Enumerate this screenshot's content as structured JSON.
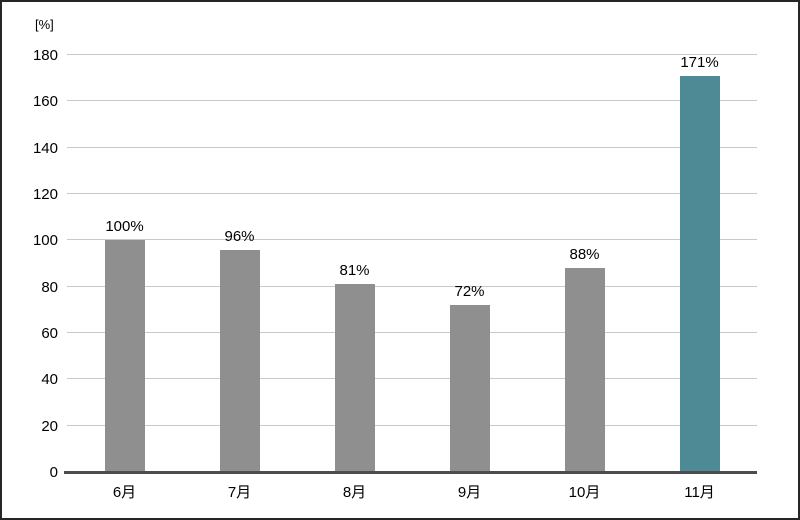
{
  "unit_label": "[%]",
  "colors": {
    "bar": "#8f8f8f",
    "bar_highlight": "#4d8a96",
    "gridline": "#c9c9c9",
    "axis": "#4d4d4d",
    "background": "#ffffff",
    "border": "#262626"
  },
  "chart_data": {
    "type": "bar",
    "categories": [
      "6月",
      "7月",
      "8月",
      "9月",
      "10月",
      "11月"
    ],
    "values": [
      100,
      96,
      81,
      72,
      88,
      171
    ],
    "data_labels": [
      "100%",
      "96%",
      "81%",
      "72%",
      "88%",
      "171%"
    ],
    "highlight_index": 5,
    "title": "",
    "xlabel": "",
    "ylabel": "[%]",
    "ylim": [
      0,
      180
    ],
    "yticks": [
      0,
      20,
      40,
      60,
      80,
      100,
      120,
      140,
      160,
      180
    ],
    "grid": true,
    "legend": false
  }
}
